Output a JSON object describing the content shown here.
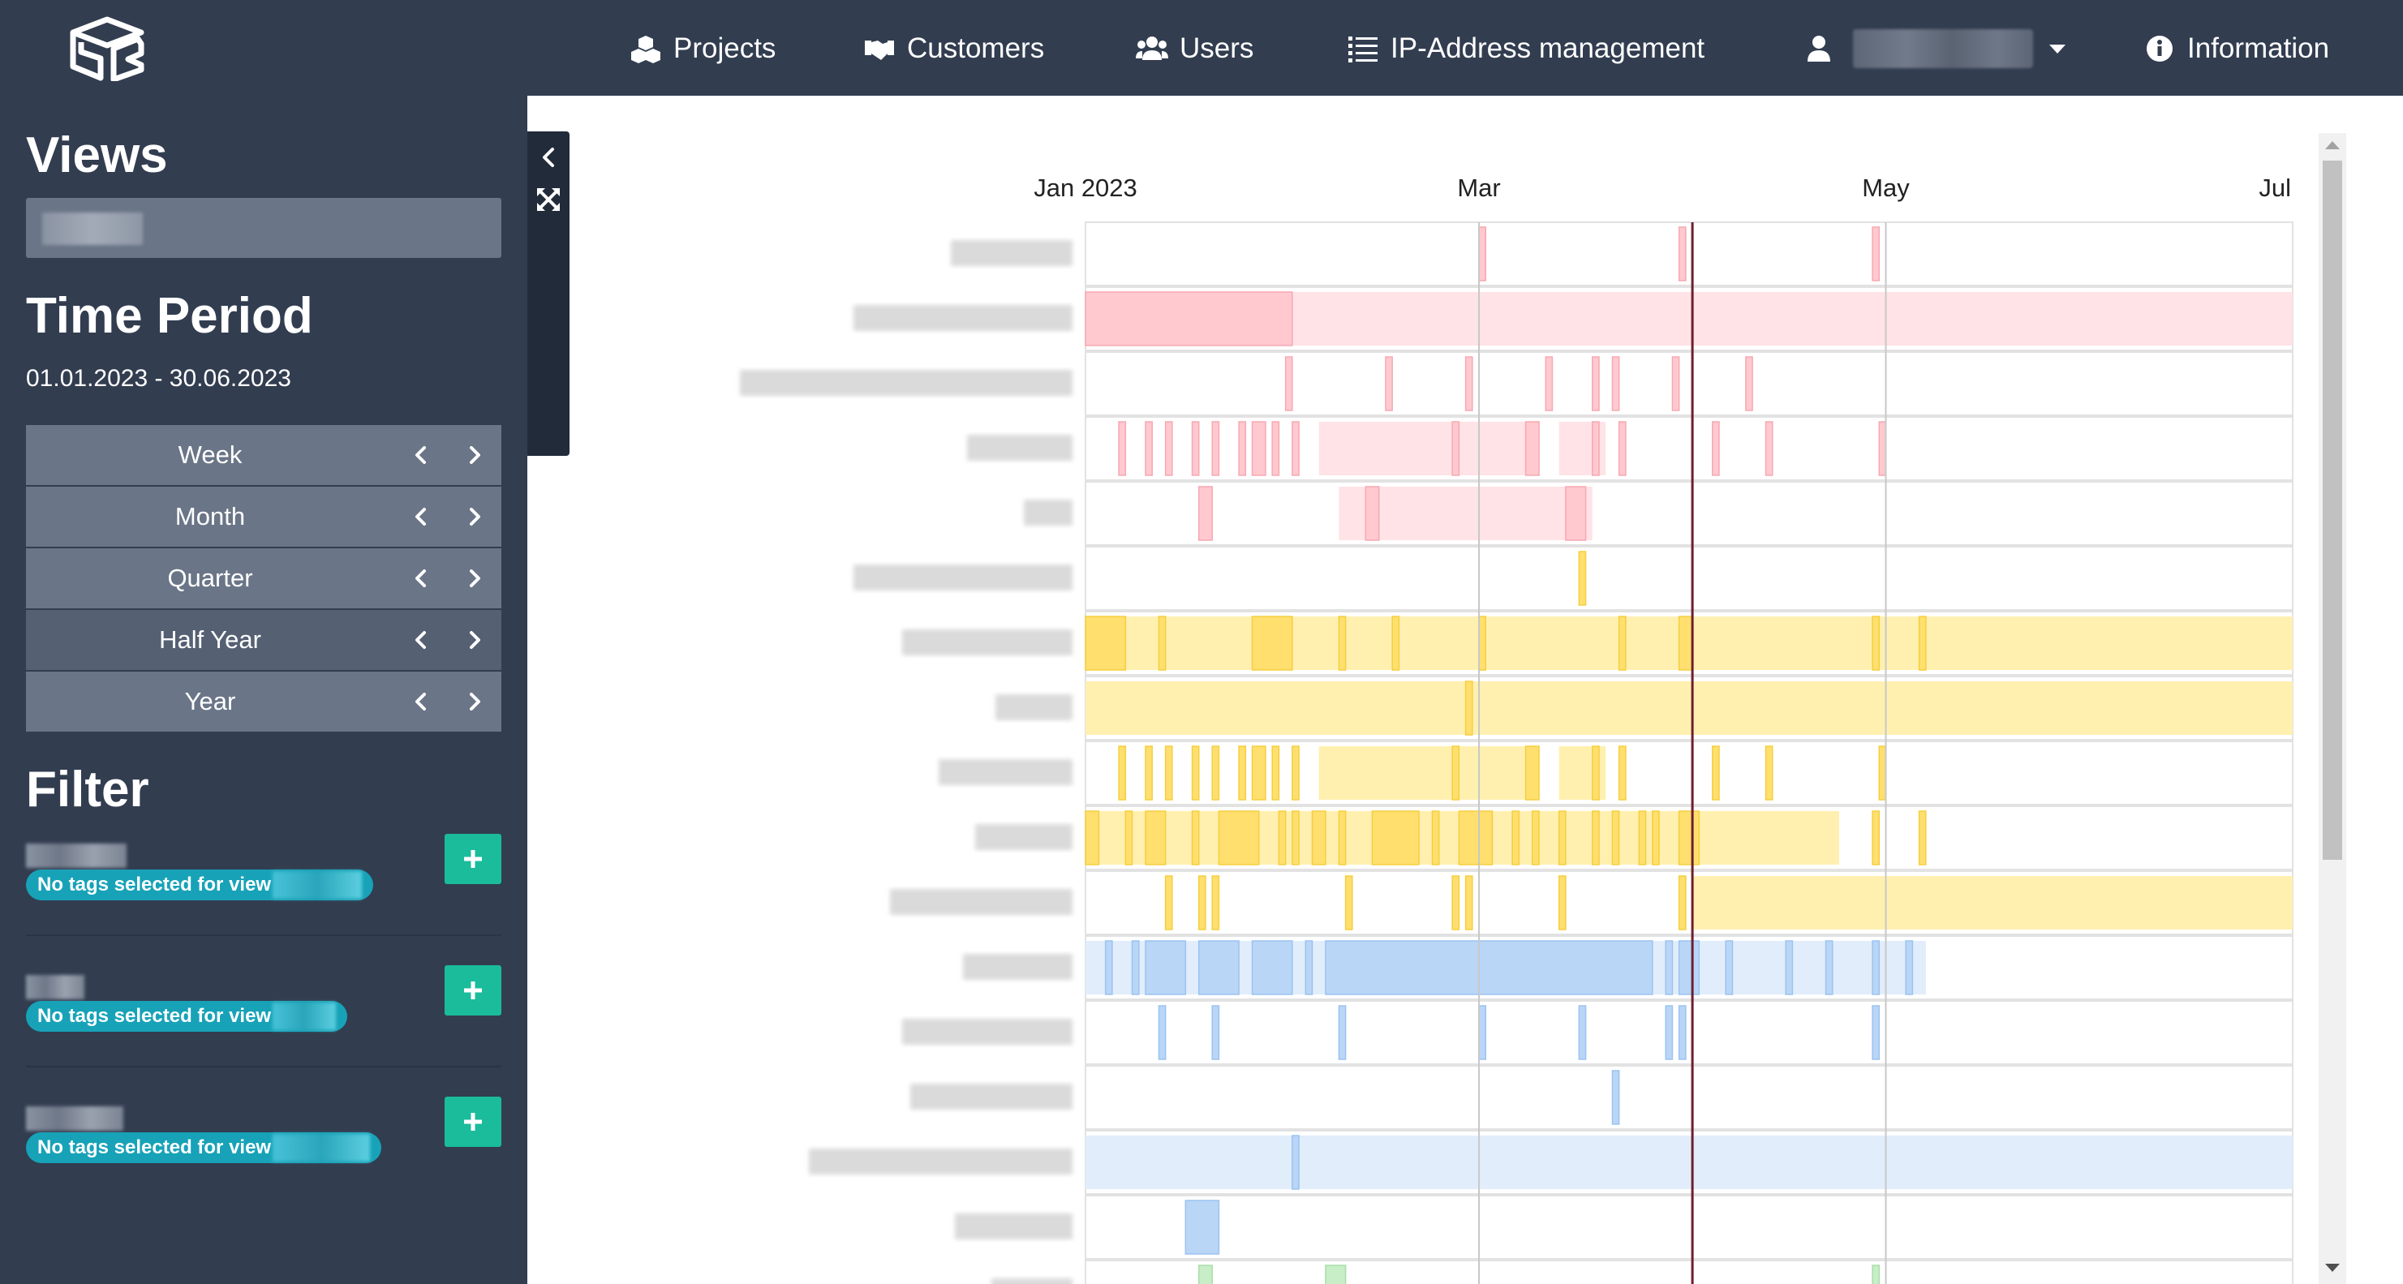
{
  "nav": {
    "projects": "Projects",
    "customers": "Customers",
    "users": "Users",
    "ip": "IP-Address management",
    "information": "Information"
  },
  "sidebar": {
    "views_heading": "Views",
    "period_heading": "Time Period",
    "period_range": "01.01.2023 - 30.06.2023",
    "periods": [
      "Week",
      "Month",
      "Quarter",
      "Half Year",
      "Year"
    ],
    "active_period": "Half Year",
    "filter_heading": "Filter",
    "filters": [
      {
        "tag": "No tags selected for view"
      },
      {
        "tag": "No tags selected for view"
      },
      {
        "tag": "No tags selected for view"
      }
    ]
  },
  "colors": {
    "nav_bg": "#323d50",
    "sidebar_btn": "#6a7587",
    "sidebar_btn_active": "#556073",
    "add_btn": "#1abc9c",
    "tag": "#17a2b8",
    "red_bar": "#ffcdd2",
    "yellow_bar": "#ffe082",
    "blue_bar": "#bbdefb",
    "green_bar": "#c8e6c9",
    "today_line": "#6d1f2f"
  },
  "timeline": {
    "axis_labels": [
      {
        "label": "Jan 2023",
        "date": "2023-01-01"
      },
      {
        "label": "Mar",
        "date": "2023-03-01"
      },
      {
        "label": "May",
        "date": "2023-05-01"
      },
      {
        "label": "Jul",
        "date": "2023-07-01"
      }
    ],
    "range": [
      "2023-01-01",
      "2023-07-01"
    ],
    "today": "2023-04-02",
    "rows": [
      {
        "color": "red",
        "bars": [
          [
            "2023-03-01",
            "2023-03-02"
          ],
          [
            "2023-03-31",
            "2023-04-01"
          ],
          [
            "2023-04-29",
            "2023-04-30"
          ]
        ]
      },
      {
        "color": "red",
        "bands": [
          [
            "2023-01-01",
            "2023-07-01"
          ]
        ],
        "bars": [
          [
            "2023-01-01",
            "2023-02-01"
          ]
        ]
      },
      {
        "color": "red",
        "bars": [
          [
            "2023-01-31",
            "2023-02-01"
          ],
          [
            "2023-02-15",
            "2023-02-16"
          ],
          [
            "2023-02-27",
            "2023-02-28"
          ],
          [
            "2023-03-11",
            "2023-03-12"
          ],
          [
            "2023-03-18",
            "2023-03-19"
          ],
          [
            "2023-03-21",
            "2023-03-22"
          ],
          [
            "2023-03-30",
            "2023-03-31"
          ],
          [
            "2023-04-10",
            "2023-04-11"
          ]
        ]
      },
      {
        "color": "red",
        "bands": [
          [
            "2023-02-05",
            "2023-03-10"
          ],
          [
            "2023-03-13",
            "2023-03-20"
          ]
        ],
        "bars": [
          [
            "2023-01-06",
            "2023-01-07"
          ],
          [
            "2023-01-10",
            "2023-01-11"
          ],
          [
            "2023-01-13",
            "2023-01-14"
          ],
          [
            "2023-01-17",
            "2023-01-18"
          ],
          [
            "2023-01-20",
            "2023-01-21"
          ],
          [
            "2023-01-24",
            "2023-01-25"
          ],
          [
            "2023-01-26",
            "2023-01-28"
          ],
          [
            "2023-01-29",
            "2023-01-30"
          ],
          [
            "2023-02-01",
            "2023-02-02"
          ],
          [
            "2023-02-25",
            "2023-02-26"
          ],
          [
            "2023-03-08",
            "2023-03-10"
          ],
          [
            "2023-03-18",
            "2023-03-19"
          ],
          [
            "2023-03-22",
            "2023-03-23"
          ],
          [
            "2023-04-05",
            "2023-04-06"
          ],
          [
            "2023-04-13",
            "2023-04-14"
          ],
          [
            "2023-04-30",
            "2023-05-01"
          ]
        ]
      },
      {
        "color": "red",
        "bands": [
          [
            "2023-02-08",
            "2023-03-18"
          ]
        ],
        "bars": [
          [
            "2023-01-18",
            "2023-01-20"
          ],
          [
            "2023-02-12",
            "2023-02-14"
          ],
          [
            "2023-03-14",
            "2023-03-17"
          ]
        ]
      },
      {
        "color": "yellow",
        "bars": [
          [
            "2023-03-16",
            "2023-03-17"
          ]
        ]
      },
      {
        "color": "yellow",
        "bands": [
          [
            "2023-01-01",
            "2023-07-01"
          ]
        ],
        "bars": [
          [
            "2023-01-01",
            "2023-01-07"
          ],
          [
            "2023-01-12",
            "2023-01-13"
          ],
          [
            "2023-01-26",
            "2023-02-01"
          ],
          [
            "2023-02-08",
            "2023-02-09"
          ],
          [
            "2023-02-16",
            "2023-02-17"
          ],
          [
            "2023-03-01",
            "2023-03-02"
          ],
          [
            "2023-03-22",
            "2023-03-23"
          ],
          [
            "2023-03-31",
            "2023-04-02"
          ],
          [
            "2023-04-29",
            "2023-04-30"
          ],
          [
            "2023-05-06",
            "2023-05-07"
          ]
        ]
      },
      {
        "color": "yellow",
        "bands": [
          [
            "2023-01-01",
            "2023-07-01"
          ]
        ],
        "bars": [
          [
            "2023-02-27",
            "2023-02-28"
          ]
        ]
      },
      {
        "color": "yellow",
        "bands": [
          [
            "2023-02-05",
            "2023-03-10"
          ],
          [
            "2023-03-13",
            "2023-03-20"
          ]
        ],
        "bars": [
          [
            "2023-01-06",
            "2023-01-07"
          ],
          [
            "2023-01-10",
            "2023-01-11"
          ],
          [
            "2023-01-13",
            "2023-01-14"
          ],
          [
            "2023-01-17",
            "2023-01-18"
          ],
          [
            "2023-01-20",
            "2023-01-21"
          ],
          [
            "2023-01-24",
            "2023-01-25"
          ],
          [
            "2023-01-26",
            "2023-01-28"
          ],
          [
            "2023-01-29",
            "2023-01-30"
          ],
          [
            "2023-02-01",
            "2023-02-02"
          ],
          [
            "2023-02-25",
            "2023-02-26"
          ],
          [
            "2023-03-08",
            "2023-03-10"
          ],
          [
            "2023-03-18",
            "2023-03-19"
          ],
          [
            "2023-03-22",
            "2023-03-23"
          ],
          [
            "2023-04-05",
            "2023-04-06"
          ],
          [
            "2023-04-13",
            "2023-04-14"
          ],
          [
            "2023-04-30",
            "2023-05-01"
          ]
        ]
      },
      {
        "color": "yellow",
        "bands": [
          [
            "2023-01-01",
            "2023-04-24"
          ]
        ],
        "bars": [
          [
            "2023-01-01",
            "2023-01-03"
          ],
          [
            "2023-01-07",
            "2023-01-08"
          ],
          [
            "2023-01-10",
            "2023-01-13"
          ],
          [
            "2023-01-17",
            "2023-01-18"
          ],
          [
            "2023-01-21",
            "2023-01-27"
          ],
          [
            "2023-01-30",
            "2023-01-31"
          ],
          [
            "2023-02-01",
            "2023-02-02"
          ],
          [
            "2023-02-04",
            "2023-02-06"
          ],
          [
            "2023-02-08",
            "2023-02-09"
          ],
          [
            "2023-02-13",
            "2023-02-20"
          ],
          [
            "2023-02-22",
            "2023-02-23"
          ],
          [
            "2023-02-26",
            "2023-03-03"
          ],
          [
            "2023-03-06",
            "2023-03-07"
          ],
          [
            "2023-03-09",
            "2023-03-10"
          ],
          [
            "2023-03-13",
            "2023-03-14"
          ],
          [
            "2023-03-18",
            "2023-03-19"
          ],
          [
            "2023-03-21",
            "2023-03-22"
          ],
          [
            "2023-03-25",
            "2023-03-26"
          ],
          [
            "2023-03-27",
            "2023-03-28"
          ],
          [
            "2023-03-31",
            "2023-04-03"
          ],
          [
            "2023-04-29",
            "2023-04-30"
          ],
          [
            "2023-05-06",
            "2023-05-07"
          ]
        ]
      },
      {
        "color": "yellow",
        "bands": [
          [
            "2023-04-02",
            "2023-07-01"
          ]
        ],
        "bars": [
          [
            "2023-01-13",
            "2023-01-14"
          ],
          [
            "2023-01-18",
            "2023-01-19"
          ],
          [
            "2023-01-20",
            "2023-01-21"
          ],
          [
            "2023-02-09",
            "2023-02-10"
          ],
          [
            "2023-02-25",
            "2023-02-26"
          ],
          [
            "2023-02-27",
            "2023-02-28"
          ],
          [
            "2023-03-13",
            "2023-03-14"
          ],
          [
            "2023-03-31",
            "2023-04-01"
          ]
        ]
      },
      {
        "color": "blue",
        "bands": [
          [
            "2023-01-01",
            "2023-05-07"
          ]
        ],
        "bars": [
          [
            "2023-01-04",
            "2023-01-05"
          ],
          [
            "2023-01-08",
            "2023-01-09"
          ],
          [
            "2023-01-10",
            "2023-01-16"
          ],
          [
            "2023-01-18",
            "2023-01-24"
          ],
          [
            "2023-01-26",
            "2023-02-01"
          ],
          [
            "2023-02-03",
            "2023-02-04"
          ],
          [
            "2023-02-06",
            "2023-03-27"
          ],
          [
            "2023-03-29",
            "2023-03-30"
          ],
          [
            "2023-03-31",
            "2023-04-03"
          ],
          [
            "2023-04-07",
            "2023-04-08"
          ],
          [
            "2023-04-16",
            "2023-04-17"
          ],
          [
            "2023-04-22",
            "2023-04-23"
          ],
          [
            "2023-04-29",
            "2023-04-30"
          ],
          [
            "2023-05-04",
            "2023-05-05"
          ]
        ]
      },
      {
        "color": "blue",
        "bars": [
          [
            "2023-01-12",
            "2023-01-13"
          ],
          [
            "2023-01-20",
            "2023-01-21"
          ],
          [
            "2023-02-08",
            "2023-02-09"
          ],
          [
            "2023-03-01",
            "2023-03-02"
          ],
          [
            "2023-03-16",
            "2023-03-17"
          ],
          [
            "2023-03-29",
            "2023-03-30"
          ],
          [
            "2023-03-31",
            "2023-04-01"
          ],
          [
            "2023-04-29",
            "2023-04-30"
          ]
        ]
      },
      {
        "color": "blue",
        "bars": [
          [
            "2023-03-21",
            "2023-03-22"
          ]
        ]
      },
      {
        "color": "blue",
        "bands": [
          [
            "2023-01-01",
            "2023-07-01"
          ]
        ],
        "bars": [
          [
            "2023-02-01",
            "2023-02-02"
          ]
        ]
      },
      {
        "color": "blue",
        "bars": [
          [
            "2023-01-16",
            "2023-01-21"
          ]
        ]
      },
      {
        "color": "green",
        "bars": [
          [
            "2023-01-18",
            "2023-01-20"
          ],
          [
            "2023-02-06",
            "2023-02-09"
          ],
          [
            "2023-04-29",
            "2023-04-30"
          ]
        ]
      }
    ]
  }
}
